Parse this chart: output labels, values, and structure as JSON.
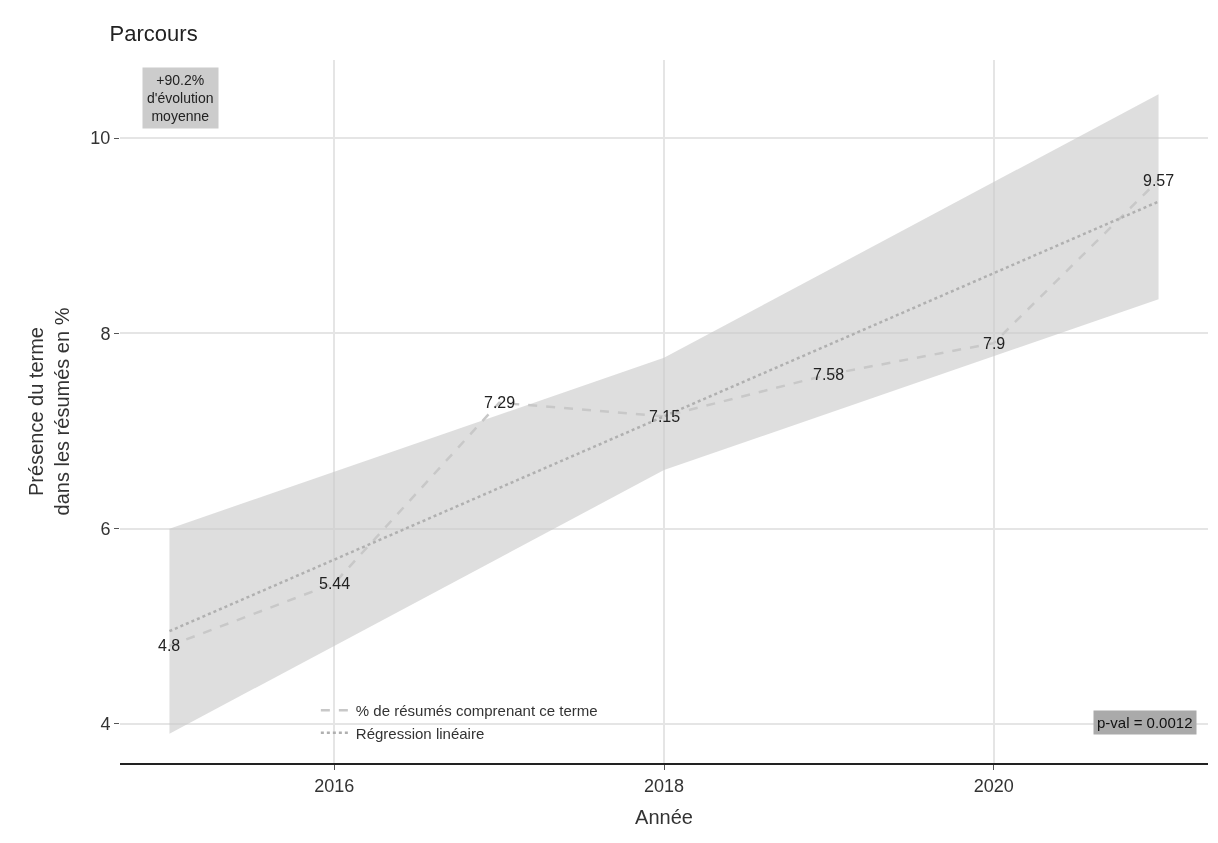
{
  "chart_data": {
    "type": "line",
    "title": "Parcours",
    "xlabel": "Année",
    "ylabel": "Présence du terme\ndans les résumés en %",
    "xlim": [
      2014.7,
      2021.3
    ],
    "xticks": [
      2016,
      2018,
      2020
    ],
    "ylim": [
      3.6,
      10.8
    ],
    "yticks": [
      4,
      6,
      8,
      10
    ],
    "grid": true,
    "legend": "bottom left",
    "series": [
      {
        "name": "% de résumés comprenant ce terme",
        "color": "#c8c8c8",
        "line_style": "dashed",
        "x": [
          2015,
          2016,
          2017,
          2018,
          2019,
          2020,
          2021
        ],
        "values": [
          4.8,
          5.44,
          7.29,
          7.15,
          7.58,
          7.9,
          9.57
        ],
        "data_labels": true
      },
      {
        "name": "Régression linéaire",
        "color": "#b0b0b0",
        "line_style": "dotted",
        "x": [
          2015,
          2018,
          2021
        ],
        "values": [
          4.95,
          7.15,
          9.35
        ],
        "lower": [
          3.9,
          6.6,
          8.35
        ],
        "upper": [
          6.0,
          7.75,
          10.45
        ]
      }
    ],
    "annotations": [
      "+90.2%\nd'évolution\nmoyenne",
      "p-val = 0.0012"
    ]
  }
}
